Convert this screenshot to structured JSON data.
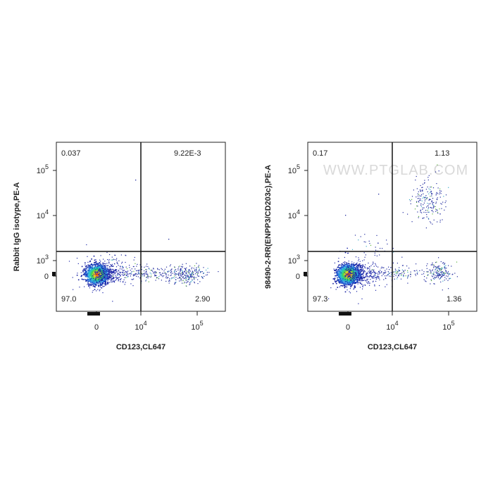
{
  "chart_data": [
    {
      "type": "scatter",
      "xlabel": "CD123,CL647",
      "ylabel": "Rabbit IgG isotype,PE-A",
      "quadrants": {
        "upper_left": "0.037",
        "upper_right": "9.22E-3",
        "lower_left": "97.0",
        "lower_right": "2.90"
      },
      "x_ticks": [
        "0",
        "10^4",
        "10^5"
      ],
      "y_ticks": [
        "0",
        "10^3",
        "10^4",
        "10^5"
      ],
      "watermark": "",
      "clusters": [
        {
          "name": "CD123-negative",
          "x": 0,
          "y": 0
        },
        {
          "name": "CD123-positive",
          "x": 90000,
          "y": 0
        }
      ]
    },
    {
      "type": "scatter",
      "xlabel": "CD123,CL647",
      "ylabel": "98490-2-RR(ENPP3/CD203c),PE-A",
      "quadrants": {
        "upper_left": "0.17",
        "upper_right": "1.13",
        "lower_left": "97.3",
        "lower_right": "1.36"
      },
      "x_ticks": [
        "0",
        "10^4",
        "10^5"
      ],
      "y_ticks": [
        "0",
        "10^3",
        "10^4",
        "10^5"
      ],
      "watermark": "WWW.PTGLAB.COM",
      "clusters": [
        {
          "name": "CD123-negative",
          "x": 0,
          "y": 0
        },
        {
          "name": "CD123-positive CD203c-positive",
          "x": 70000,
          "y": 50000
        },
        {
          "name": "CD123-positive CD203c-negative",
          "x": 70000,
          "y": 0
        }
      ]
    }
  ]
}
